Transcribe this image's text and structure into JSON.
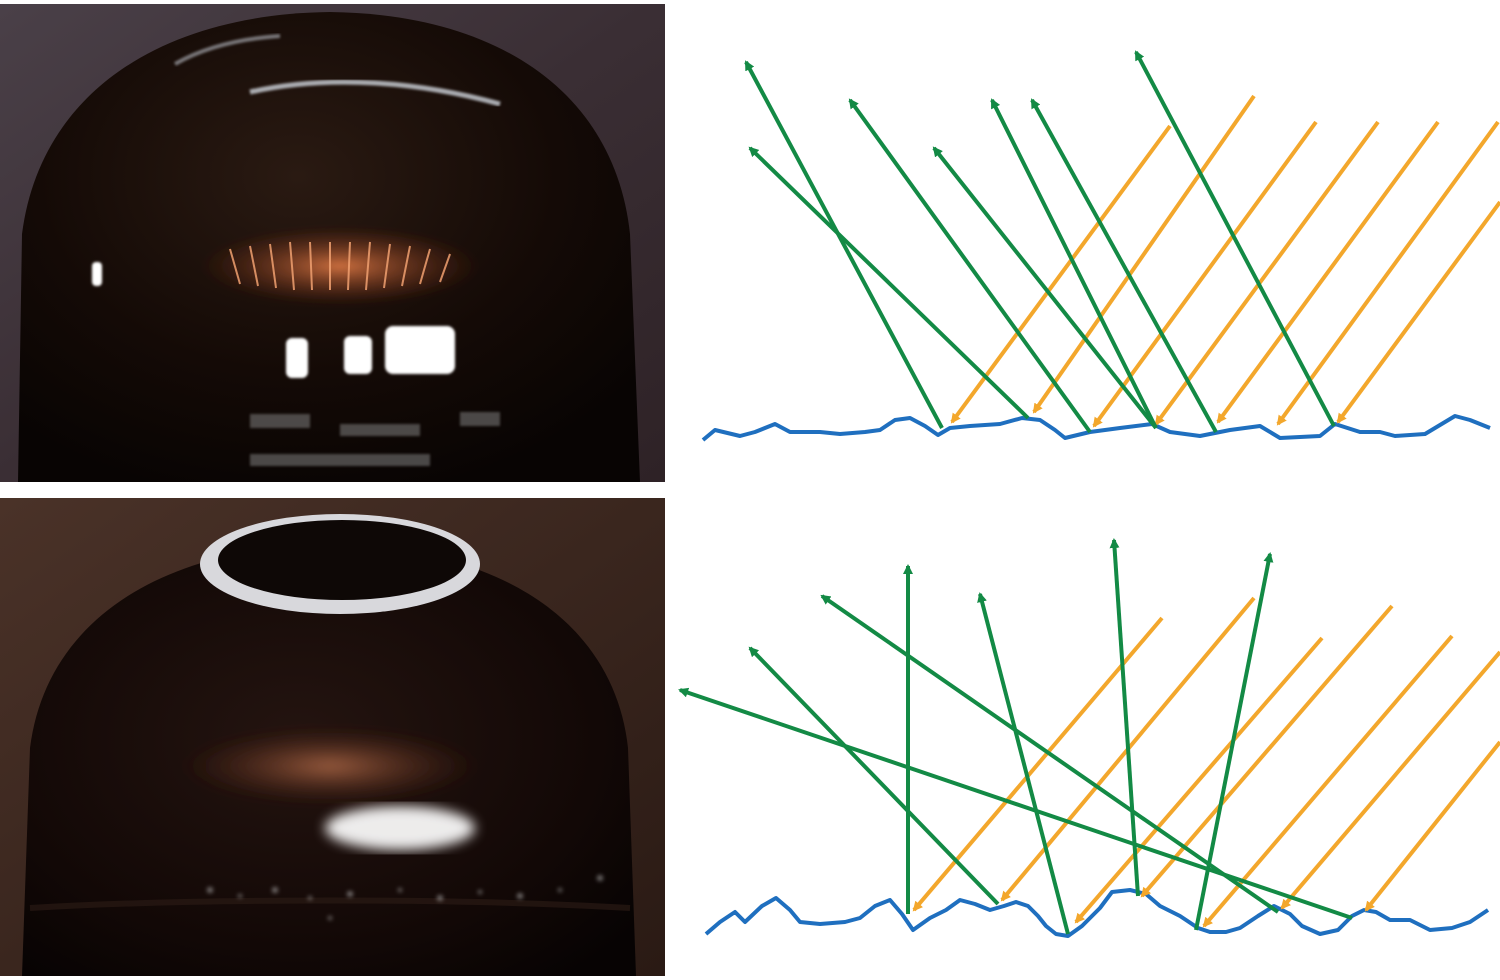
{
  "figure": {
    "panels": [
      {
        "id": "smooth",
        "surface": "smooth",
        "photo_icon": "glossy-bottle-photo"
      },
      {
        "id": "rough",
        "surface": "rough",
        "photo_icon": "matte-bottle-photo"
      }
    ]
  },
  "colors": {
    "incident_ray": "#f3a72c",
    "reflected_ray": "#138a45",
    "surface_line": "#1f6fbf",
    "bottle": "#150b06",
    "background": "#ffffff"
  }
}
